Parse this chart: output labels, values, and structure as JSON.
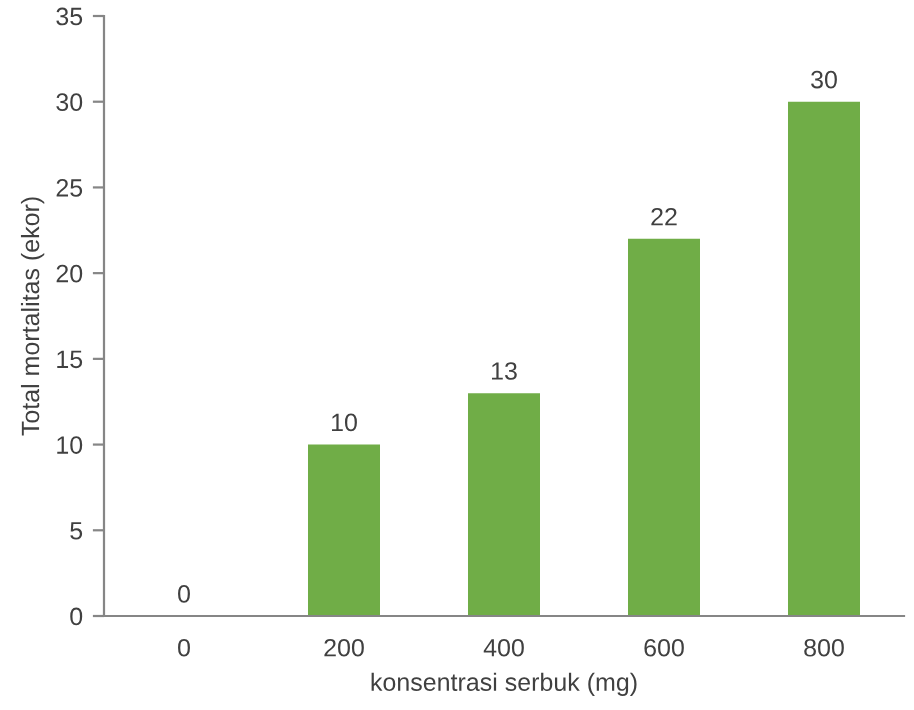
{
  "chart_data": {
    "type": "bar",
    "xlabel": "konsentrasi serbuk (mg)",
    "ylabel": "Total mortalitas (ekor)",
    "categories": [
      "0",
      "200",
      "400",
      "600",
      "800"
    ],
    "values": [
      0,
      10,
      13,
      22,
      30
    ],
    "color": "#70ad47",
    "ylim": [
      0,
      35
    ],
    "yticks": [
      0,
      5,
      10,
      15,
      20,
      25,
      30,
      35
    ],
    "grid": false,
    "data_labels": true
  }
}
